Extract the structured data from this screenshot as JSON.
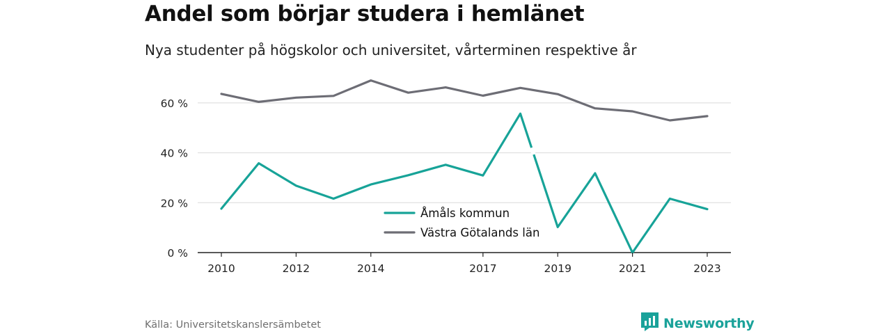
{
  "title": "Andel som börjar studera i hemlänet",
  "subtitle": "Nya studenter på högskolor och universitet, vårterminen respektive år",
  "source": "Källa: Universitetskanslersämbetet",
  "brand": {
    "name": "Newsworthy",
    "color": "#1aa29a",
    "icon": "newsworthy-logo-icon"
  },
  "chart_data": {
    "type": "line",
    "x": [
      2010,
      2011,
      2012,
      2013,
      2014,
      2015,
      2016,
      2017,
      2018,
      2019,
      2020,
      2021,
      2022,
      2023
    ],
    "xticks": [
      2010,
      2012,
      2014,
      2017,
      2019,
      2021,
      2023
    ],
    "yticks": [
      0,
      20,
      40,
      60
    ],
    "ytick_labels": [
      "0 %",
      "20 %",
      "40 %",
      "60 %"
    ],
    "ylim": [
      0,
      70
    ],
    "xlim": [
      2010,
      2023
    ],
    "grid": true,
    "legend_position": "center",
    "series": [
      {
        "name": "Åmåls kommun",
        "color": "#17a398",
        "values": [
          17.6,
          35.8,
          26.8,
          21.6,
          27.3,
          31.0,
          35.2,
          30.9,
          55.7,
          10.2,
          31.8,
          0.0,
          21.6,
          17.4
        ],
        "gap_before_index": 9
      },
      {
        "name": "Västra Götalands län",
        "color": "#6d6d75",
        "values": [
          63.6,
          60.4,
          62.1,
          62.8,
          69.0,
          64.1,
          66.2,
          62.9,
          66.0,
          63.5,
          57.8,
          56.6,
          53.0,
          54.7
        ]
      }
    ]
  }
}
